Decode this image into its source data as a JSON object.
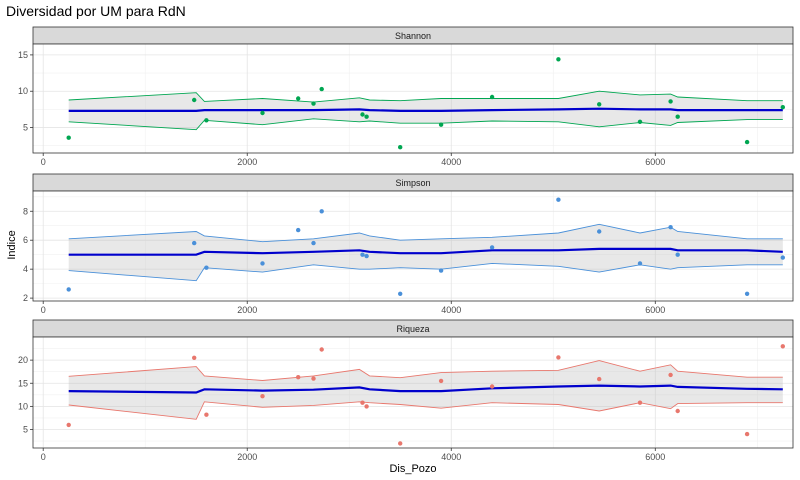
{
  "chart_data": {
    "type": "scatter",
    "title": "Diversidad por UM para RdN",
    "xlabel": "Dis_Pozo",
    "ylabel": "Indice",
    "xlim": [
      -100,
      7350
    ],
    "x_ticks": [
      0,
      2000,
      4000,
      6000
    ],
    "x": [
      250,
      1480,
      1600,
      2150,
      2500,
      2650,
      2730,
      3130,
      3170,
      3500,
      3900,
      4400,
      5050,
      5450,
      5850,
      6150,
      6220,
      6900,
      7250
    ],
    "grid": true,
    "legend": "none",
    "fit_x": [
      250,
      1500,
      1580,
      2150,
      2650,
      3100,
      3200,
      3500,
      3900,
      4400,
      5050,
      5450,
      5850,
      6150,
      6220,
      6900,
      7250
    ],
    "panels": [
      {
        "name": "Shannon",
        "color": "#00a651",
        "ylim": [
          1.5,
          16.5
        ],
        "y_ticks": [
          5,
          10,
          15
        ],
        "y": [
          3.6,
          8.8,
          6.0,
          7.0,
          9.0,
          8.3,
          10.3,
          6.8,
          6.5,
          2.3,
          5.4,
          9.2,
          14.4,
          8.2,
          5.8,
          8.6,
          6.5,
          3.0,
          7.8
        ],
        "fit": [
          7.3,
          7.3,
          7.4,
          7.4,
          7.4,
          7.5,
          7.4,
          7.3,
          7.3,
          7.4,
          7.5,
          7.6,
          7.5,
          7.5,
          7.4,
          7.4,
          7.4
        ],
        "upper": [
          8.8,
          9.8,
          8.6,
          9.0,
          8.5,
          9.1,
          8.8,
          8.7,
          9.0,
          9.0,
          9.0,
          10.0,
          9.5,
          9.6,
          9.2,
          8.7,
          8.7
        ],
        "lower": [
          5.8,
          4.7,
          6.0,
          5.4,
          6.2,
          5.8,
          5.9,
          5.6,
          5.6,
          5.9,
          5.8,
          5.1,
          5.7,
          5.3,
          5.7,
          6.1,
          6.1
        ]
      },
      {
        "name": "Simpson",
        "color": "#4a90d9",
        "ylim": [
          1.8,
          9.4
        ],
        "y_ticks": [
          2,
          4,
          6,
          8
        ],
        "y": [
          2.6,
          5.8,
          4.1,
          4.4,
          6.7,
          5.8,
          8.0,
          5.0,
          4.9,
          2.3,
          3.9,
          5.5,
          8.8,
          6.6,
          4.4,
          6.9,
          5.0,
          2.3,
          4.8
        ],
        "fit": [
          5.0,
          5.0,
          5.2,
          5.1,
          5.2,
          5.3,
          5.2,
          5.1,
          5.1,
          5.3,
          5.3,
          5.4,
          5.4,
          5.4,
          5.3,
          5.3,
          5.2
        ],
        "upper": [
          6.1,
          6.6,
          6.3,
          5.9,
          6.1,
          6.5,
          6.3,
          6.0,
          6.1,
          6.2,
          6.5,
          7.1,
          6.5,
          6.9,
          6.6,
          6.1,
          6.1
        ],
        "lower": [
          3.9,
          3.2,
          4.1,
          3.8,
          4.3,
          4.0,
          4.0,
          4.1,
          4.0,
          4.4,
          4.2,
          3.8,
          4.3,
          4.0,
          4.1,
          4.3,
          4.3
        ]
      },
      {
        "name": "Riqueza",
        "color": "#e8776d",
        "ylim": [
          1,
          25
        ],
        "y_ticks": [
          5,
          10,
          15,
          20
        ],
        "y": [
          6.0,
          20.5,
          8.2,
          12.2,
          16.3,
          16.0,
          22.3,
          10.8,
          10.0,
          2.0,
          15.5,
          14.3,
          20.6,
          15.9,
          10.8,
          16.8,
          9.0,
          4.0,
          23.0
        ],
        "fit": [
          13.3,
          13.0,
          13.7,
          13.4,
          13.6,
          14.1,
          13.7,
          13.3,
          13.3,
          13.9,
          14.3,
          14.5,
          14.3,
          14.5,
          14.2,
          13.8,
          13.7
        ],
        "upper": [
          16.5,
          18.6,
          16.6,
          15.6,
          16.6,
          18.0,
          16.6,
          16.2,
          17.3,
          17.6,
          17.8,
          19.9,
          17.6,
          19.0,
          17.6,
          16.3,
          16.3
        ],
        "lower": [
          10.3,
          7.2,
          11.0,
          9.8,
          10.2,
          11.0,
          10.8,
          10.4,
          9.6,
          10.8,
          10.4,
          9.0,
          10.8,
          9.5,
          10.6,
          10.8,
          10.8
        ]
      }
    ]
  }
}
